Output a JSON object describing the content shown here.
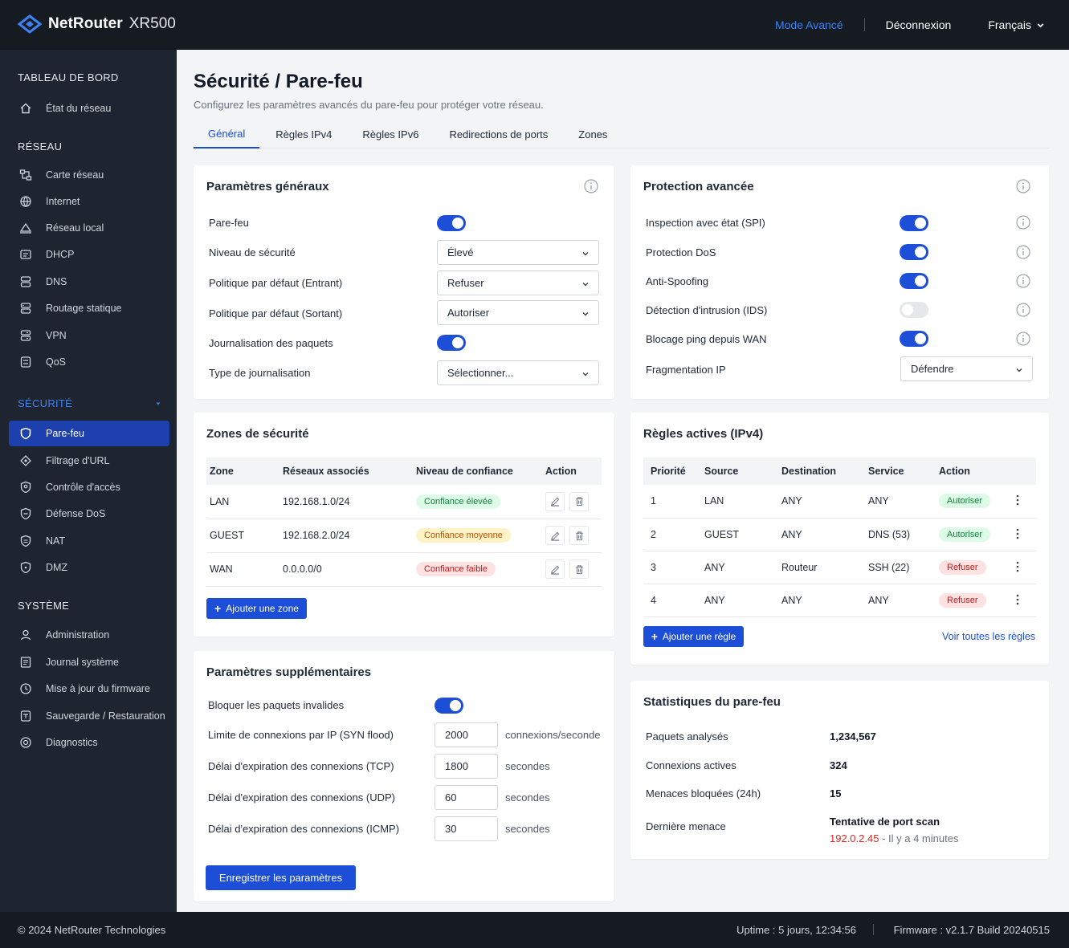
{
  "header": {
    "brand_name": "NetRouter",
    "brand_model": "XR500",
    "mode_link": "Mode Avancé",
    "logout": "Déconnexion",
    "language": "Français"
  },
  "sidebar": {
    "sections": {
      "dashboard": "TABLEAU DE BORD",
      "network": "RÉSEAU",
      "security": "SÉCURITÉ",
      "system": "SYSTÈME"
    },
    "dashboard_items": [
      {
        "label": "État du réseau",
        "icon": "home-icon"
      }
    ],
    "network_items": [
      {
        "label": "Carte réseau",
        "icon": "network-map-icon"
      },
      {
        "label": "Internet",
        "icon": "globe-icon"
      },
      {
        "label": "Réseau local",
        "icon": "local-network-icon"
      },
      {
        "label": "DHCP",
        "icon": "dhcp-icon"
      },
      {
        "label": "DNS",
        "icon": "dns-icon"
      },
      {
        "label": "Routage statique",
        "icon": "routing-icon"
      },
      {
        "label": "VPN",
        "icon": "vpn-icon"
      },
      {
        "label": "QoS",
        "icon": "qos-icon"
      }
    ],
    "security_items": [
      {
        "label": "Pare-feu",
        "icon": "shield-icon",
        "active": true
      },
      {
        "label": "Filtrage d'URL",
        "icon": "url-filter-icon"
      },
      {
        "label": "Contrôle d'accès",
        "icon": "access-control-icon"
      },
      {
        "label": "Défense DoS",
        "icon": "dos-defense-icon"
      },
      {
        "label": "NAT",
        "icon": "nat-icon"
      },
      {
        "label": "DMZ",
        "icon": "dmz-icon"
      }
    ],
    "system_items": [
      {
        "label": "Administration",
        "icon": "user-icon"
      },
      {
        "label": "Journal système",
        "icon": "log-icon"
      },
      {
        "label": "Mise à jour du firmware",
        "icon": "update-icon"
      },
      {
        "label": "Sauvegarde / Restauration",
        "icon": "backup-icon"
      },
      {
        "label": "Diagnostics",
        "icon": "diagnostics-icon"
      }
    ]
  },
  "page": {
    "title": "Sécurité / Pare-feu",
    "subtitle": "Configurez les paramètres avancés du pare-feu pour protéger votre réseau.",
    "tabs": [
      "Général",
      "Règles IPv4",
      "Règles IPv6",
      "Redirections de ports",
      "Zones"
    ],
    "active_tab": "Général"
  },
  "general": {
    "title": "Paramètres généraux",
    "firewall_label": "Pare-feu",
    "firewall_on": true,
    "level_label": "Niveau de sécurité",
    "level_value": "Élevé",
    "in_policy_label": "Politique par défaut (Entrant)",
    "in_policy_value": "Refuser",
    "out_policy_label": "Politique par défaut (Sortant)",
    "out_policy_value": "Autoriser",
    "logging_label": "Journalisation des paquets",
    "logging_on": true,
    "log_type_label": "Type de journalisation",
    "log_type_value": "Sélectionner..."
  },
  "advanced": {
    "title": "Protection avancée",
    "items": [
      {
        "label": "Inspection avec état (SPI)",
        "on": true
      },
      {
        "label": "Protection DoS",
        "on": true
      },
      {
        "label": "Anti-Spoofing",
        "on": true
      },
      {
        "label": "Détection d'intrusion (IDS)",
        "on": false
      },
      {
        "label": "Blocage ping depuis WAN",
        "on": true
      }
    ],
    "frag_label": "Fragmentation IP",
    "frag_value": "Défendre"
  },
  "zones": {
    "title": "Zones de sécurité",
    "headers": [
      "Zone",
      "Réseaux associés",
      "Niveau de confiance",
      "Action"
    ],
    "rows": [
      {
        "zone": "LAN",
        "network": "192.168.1.0/24",
        "trust": "Confiance élevée",
        "trust_level": "high"
      },
      {
        "zone": "GUEST",
        "network": "192.168.2.0/24",
        "trust": "Confiance moyenne",
        "trust_level": "medium"
      },
      {
        "zone": "WAN",
        "network": "0.0.0.0/0",
        "trust": "Confiance faible",
        "trust_level": "low"
      }
    ],
    "add_button": "Ajouter une zone"
  },
  "rules": {
    "title": "Règles actives (IPv4)",
    "headers": [
      "Priorité",
      "Source",
      "Destination",
      "Service",
      "Action"
    ],
    "rows": [
      {
        "priority": "1",
        "source": "LAN",
        "destination": "ANY",
        "service": "ANY",
        "action": "Autoriser",
        "allow": true
      },
      {
        "priority": "2",
        "source": "GUEST",
        "destination": "ANY",
        "service": "DNS (53)",
        "action": "Autoriser",
        "allow": true
      },
      {
        "priority": "3",
        "source": "ANY",
        "destination": "Routeur",
        "service": "SSH (22)",
        "action": "Refuser",
        "allow": false
      },
      {
        "priority": "4",
        "source": "ANY",
        "destination": "ANY",
        "service": "ANY",
        "action": "Refuser",
        "allow": false
      }
    ],
    "add_button": "Ajouter une règle",
    "view_all": "Voir toutes les règles"
  },
  "extra": {
    "title": "Paramètres supplémentaires",
    "invalid_label": "Bloquer les paquets invalides",
    "invalid_on": true,
    "syn_label": "Limite de connexions par IP (SYN flood)",
    "syn_value": "2000",
    "syn_unit": "connexions/seconde",
    "tcp_label": "Délai d'expiration des connexions (TCP)",
    "tcp_value": "1800",
    "udp_label": "Délai d'expiration des connexions (UDP)",
    "udp_value": "60",
    "icmp_label": "Délai d'expiration des connexions (ICMP)",
    "icmp_value": "30",
    "seconds_unit": "secondes",
    "save_button": "Enregistrer les paramètres"
  },
  "stats": {
    "title": "Statistiques du pare-feu",
    "packets_label": "Paquets analysés",
    "packets_value": "1,234,567",
    "connections_label": "Connexions actives",
    "connections_value": "324",
    "threats_label": "Menaces bloquées (24h)",
    "threats_value": "15",
    "last_threat_label": "Dernière menace",
    "last_threat_name": "Tentative de port scan",
    "last_threat_ip": "192.0.2.45",
    "last_threat_time": "- Il y a 4 minutes"
  },
  "footer": {
    "copyright": "© 2024 NetRouter Technologies",
    "uptime": "Uptime : 5 jours, 12:34:56",
    "firmware": "Firmware : v2.1.7 Build 20240515"
  },
  "colors": {
    "accent": "#1d4ed8",
    "topbar": "#161b22",
    "sidebar": "#1f2530",
    "link_blue": "#3b82f6",
    "threat_red": "#dc2626"
  }
}
